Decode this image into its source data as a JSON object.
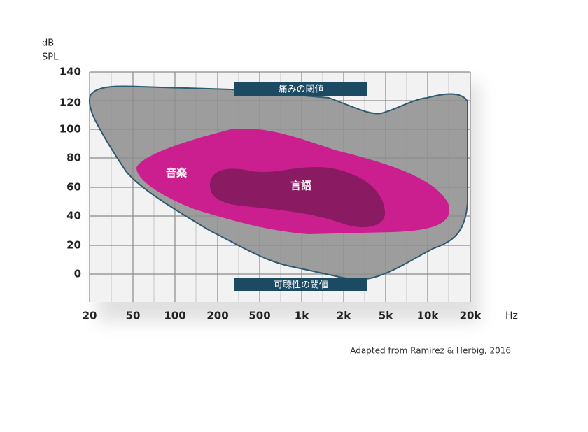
{
  "y_axis": {
    "unit": [
      "dB",
      "SPL"
    ],
    "ticks": [
      "140",
      "120",
      "100",
      "80",
      "60",
      "40",
      "20",
      "0"
    ]
  },
  "x_axis": {
    "ticks": [
      "20",
      "50",
      "100",
      "200",
      "500",
      "1k",
      "2k",
      "5k",
      "10k",
      "20k"
    ],
    "unit": "Hz"
  },
  "regions": {
    "music": "音楽",
    "speech": "言語"
  },
  "banners": {
    "pain": "痛みの閾値",
    "audibility": "可聴性の閾値"
  },
  "caption": "Adapted from Ramirez & Herbig, 2016"
}
